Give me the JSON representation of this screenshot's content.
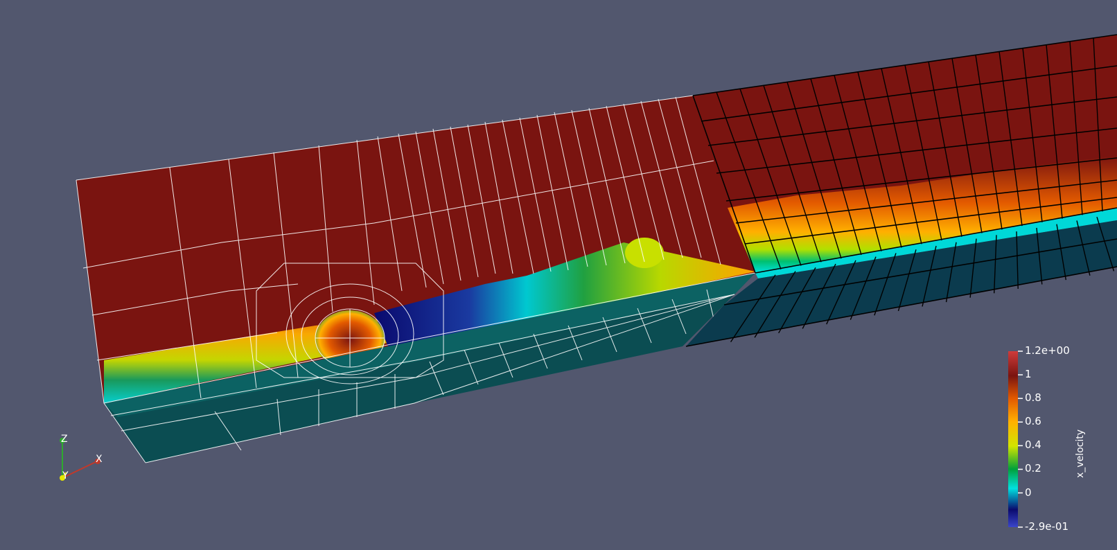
{
  "scalar_bar": {
    "title": "x_velocity",
    "range": [
      -0.29,
      1.2
    ],
    "labels": [
      "1.2e+00",
      "1",
      "0.8",
      "0.6",
      "0.4",
      "0.2",
      "0",
      "-2.9e-01"
    ],
    "colors": [
      "#3b46c9",
      "#0a0a6e",
      "#00e0e0",
      "#00a03a",
      "#d2e400",
      "#ffb000",
      "#e35a00",
      "#7a1410",
      "#cf3b3b"
    ]
  },
  "axes": {
    "x": "X",
    "y": "Y",
    "z": "Z",
    "x_color": "#c0392b",
    "y_color": "#e6e600",
    "z_color": "#2eaa2e"
  },
  "mesh_colors": {
    "background": "#52576e",
    "high": "#7a1410",
    "wall": "#0b4d52",
    "edges_left": "#ffffff",
    "edges_right": "#000000"
  }
}
